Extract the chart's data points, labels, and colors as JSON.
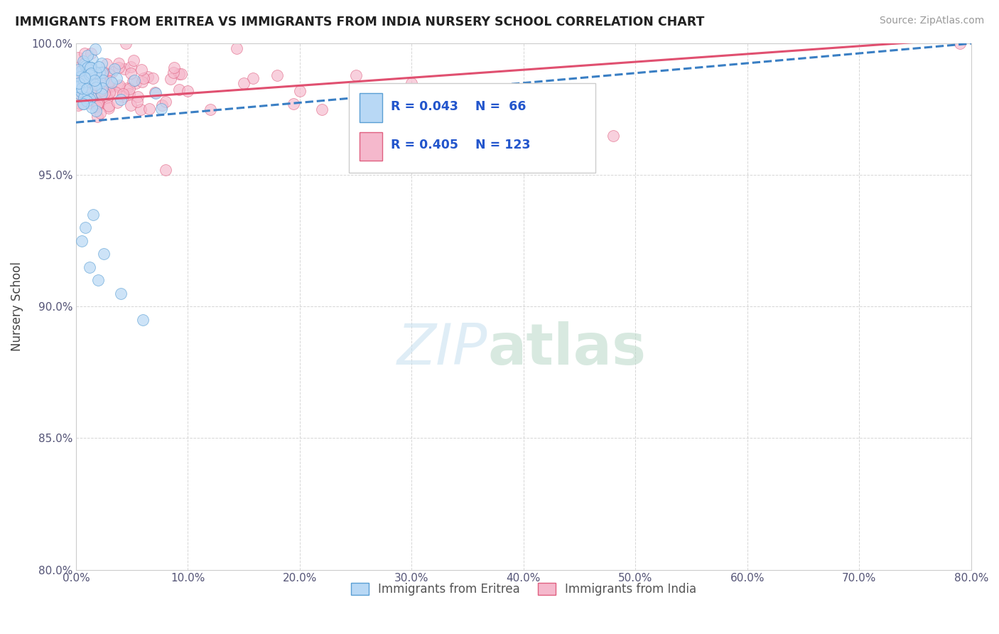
{
  "title": "IMMIGRANTS FROM ERITREA VS IMMIGRANTS FROM INDIA NURSERY SCHOOL CORRELATION CHART",
  "source": "Source: ZipAtlas.com",
  "ylabel": "Nursery School",
  "xlim": [
    0.0,
    80.0
  ],
  "ylim": [
    80.0,
    100.0
  ],
  "legend_eritrea": "Immigrants from Eritrea",
  "legend_india": "Immigrants from India",
  "r_eritrea": 0.043,
  "n_eritrea": 66,
  "r_india": 0.405,
  "n_india": 123,
  "color_eritrea_fill": "#b8d8f5",
  "color_eritrea_edge": "#5a9fd4",
  "color_india_fill": "#f5b8cc",
  "color_india_edge": "#e06080",
  "color_eritrea_line": "#3a7fc4",
  "color_india_line": "#e05070",
  "background_color": "#ffffff",
  "grid_color": "#cccccc"
}
